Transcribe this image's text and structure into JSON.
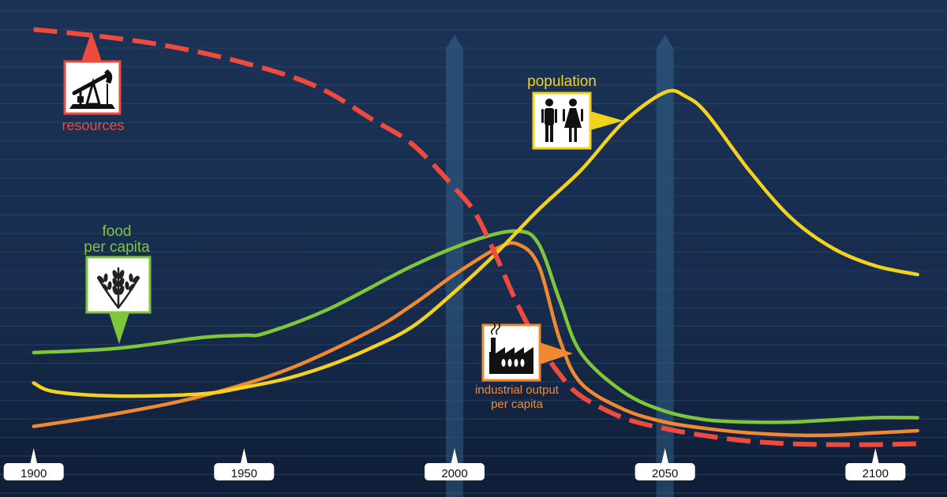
{
  "chart_data": {
    "type": "line",
    "title": "",
    "xlabel": "",
    "ylabel": "",
    "xlim": [
      1892,
      2117
    ],
    "ylim": [
      0,
      100
    ],
    "grid": true,
    "x_ticks": [
      "1900",
      "1950",
      "2000",
      "2050",
      "2100"
    ],
    "highlight_years": [
      2000,
      2050
    ],
    "series": [
      {
        "name": "resources",
        "color": "#ee4a3e",
        "dashed": true,
        "icon": "oil-pump-icon",
        "x": [
          1900,
          1915,
          1930,
          1945,
          1960,
          1970,
          1980,
          1990,
          2000,
          2005,
          2010,
          2015,
          2020,
          2025,
          2030,
          2040,
          2050,
          2060,
          2070,
          2080,
          2090,
          2100,
          2110
        ],
        "y": [
          96.5,
          95,
          93,
          90,
          86,
          82,
          76,
          70,
          60,
          54,
          44,
          33,
          24,
          17,
          12,
          7,
          4.5,
          2.8,
          1.6,
          1,
          0.8,
          0.8,
          1
        ]
      },
      {
        "name": "population",
        "color": "#f3d21f",
        "dashed": false,
        "icon": "people-icon",
        "x": [
          1900,
          1905,
          1920,
          1940,
          1950,
          1960,
          1970,
          1980,
          1990,
          2000,
          2010,
          2020,
          2030,
          2040,
          2050,
          2055,
          2060,
          2070,
          2080,
          2090,
          2100,
          2110
        ],
        "y": [
          15,
          13,
          12,
          12.5,
          14,
          16,
          19,
          23,
          28,
          36,
          45,
          55,
          64,
          75,
          82,
          81,
          77,
          64,
          53,
          46,
          42,
          40
        ]
      },
      {
        "name": "food per capita",
        "color": "#7ec63a",
        "dashed": false,
        "icon": "wheat-icon",
        "x": [
          1900,
          1920,
          1940,
          1950,
          1955,
          1970,
          1990,
          2005,
          2015,
          2020,
          2025,
          2030,
          2040,
          2050,
          2060,
          2070,
          2080,
          2090,
          2100,
          2110
        ],
        "y": [
          22,
          23,
          25.5,
          26,
          26.5,
          32,
          42,
          48,
          50,
          47,
          34,
          22,
          13,
          8.5,
          6.5,
          6,
          6,
          6.5,
          7,
          7
        ]
      },
      {
        "name": "industrial output per capita",
        "color": "#f08a32",
        "dashed": false,
        "icon": "factory-icon",
        "x": [
          1900,
          1920,
          1940,
          1960,
          1980,
          1990,
          2000,
          2010,
          2015,
          2020,
          2025,
          2030,
          2040,
          2050,
          2060,
          2070,
          2080,
          2090,
          2100,
          2110
        ],
        "y": [
          5,
          8,
          12,
          18,
          27,
          33,
          40,
          46,
          47,
          42,
          25,
          15,
          9,
          6,
          4.5,
          3.5,
          3,
          3,
          3.5,
          4
        ]
      }
    ]
  },
  "labels": {
    "resources": "resources",
    "population": "population",
    "food_line1": "food",
    "food_line2": "per capita",
    "industry_line1": "industrial output",
    "industry_line2": "per capita"
  }
}
